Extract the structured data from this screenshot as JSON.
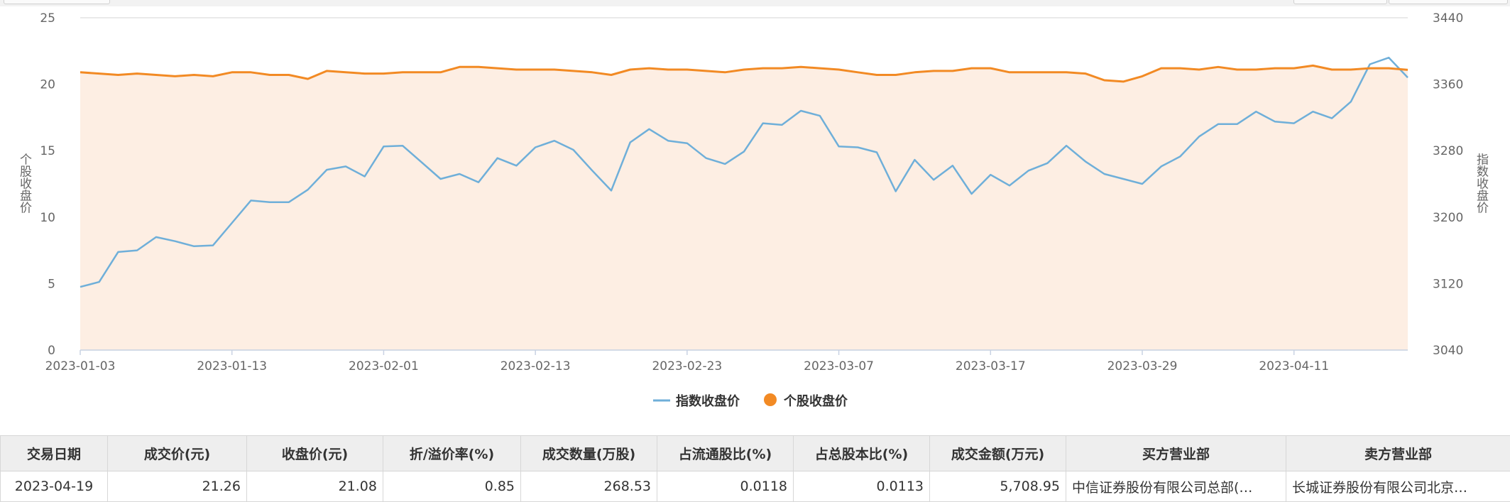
{
  "chart_data": {
    "type": "line",
    "title": "",
    "xlabel": "",
    "ylabel": "个股收盘价",
    "ylabel_right": "指数收盘价",
    "ylim": [
      0,
      25
    ],
    "ylim_right": [
      3040,
      3440
    ],
    "y_ticks": [
      "0",
      "5",
      "10",
      "15",
      "20",
      "25"
    ],
    "y_ticks_right": [
      "3040",
      "3120",
      "3200",
      "3280",
      "3360",
      "3440"
    ],
    "x_ticks": [
      "2023-01-03",
      "2023-01-13",
      "2023-02-01",
      "2023-02-13",
      "2023-02-23",
      "2023-03-07",
      "2023-03-17",
      "2023-03-29",
      "2023-04-11"
    ],
    "x_tick_index": [
      0,
      8,
      16,
      24,
      32,
      40,
      48,
      56,
      64
    ],
    "legend_position": "bottom",
    "grid": true,
    "colors": {
      "index_line": "#6fafd9",
      "stock_line": "#f28a24",
      "stock_area": "#fdeee3",
      "grid": "#e3e3e3"
    },
    "series": [
      {
        "name": "指数收盘价",
        "axis": "right",
        "values": [
          3116,
          3122,
          3158,
          3160,
          3176,
          3171,
          3165,
          3166,
          3193,
          3220,
          3218,
          3218,
          3233,
          3257,
          3261,
          3249,
          3285,
          3286,
          3266,
          3246,
          3252,
          3242,
          3271,
          3262,
          3284,
          3292,
          3281,
          3256,
          3232,
          3290,
          3306,
          3292,
          3289,
          3271,
          3264,
          3279,
          3313,
          3311,
          3328,
          3322,
          3285,
          3284,
          3278,
          3231,
          3269,
          3245,
          3262,
          3228,
          3251,
          3238,
          3256,
          3265,
          3286,
          3267,
          3252,
          3246,
          3240,
          3261,
          3273,
          3297,
          3312,
          3312,
          3327,
          3315,
          3313,
          3327,
          3319,
          3339,
          3384,
          3392,
          3368
        ]
      },
      {
        "name": "个股收盘价",
        "axis": "left",
        "values": [
          20.9,
          20.8,
          20.7,
          20.8,
          20.7,
          20.6,
          20.7,
          20.6,
          20.9,
          20.9,
          20.7,
          20.7,
          20.4,
          21.0,
          20.9,
          20.8,
          20.8,
          20.9,
          20.9,
          20.9,
          21.3,
          21.3,
          21.2,
          21.1,
          21.1,
          21.1,
          21.0,
          20.9,
          20.7,
          21.1,
          21.2,
          21.1,
          21.1,
          21.0,
          20.9,
          21.1,
          21.2,
          21.2,
          21.3,
          21.2,
          21.1,
          20.9,
          20.7,
          20.7,
          20.9,
          21.0,
          21.0,
          21.2,
          21.2,
          20.9,
          20.9,
          20.9,
          20.9,
          20.8,
          20.3,
          20.2,
          20.6,
          21.2,
          21.2,
          21.1,
          21.3,
          21.1,
          21.1,
          21.2,
          21.2,
          21.4,
          21.1,
          21.1,
          21.2,
          21.2,
          21.08
        ]
      }
    ]
  },
  "table": {
    "headers": [
      "交易日期",
      "成交价(元)",
      "收盘价(元)",
      "折/溢价率(%)",
      "成交数量(万股)",
      "占流通股比(%)",
      "占总股本比(%)",
      "成交金额(万元)",
      "买方营业部",
      "卖方营业部"
    ],
    "rows": [
      [
        "2023-04-19",
        "21.26",
        "21.08",
        "0.85",
        "268.53",
        "0.0118",
        "0.0113",
        "5,708.95",
        "中信证券股份有限公司总部(…",
        "长城证券股份有限公司北京…"
      ]
    ]
  }
}
